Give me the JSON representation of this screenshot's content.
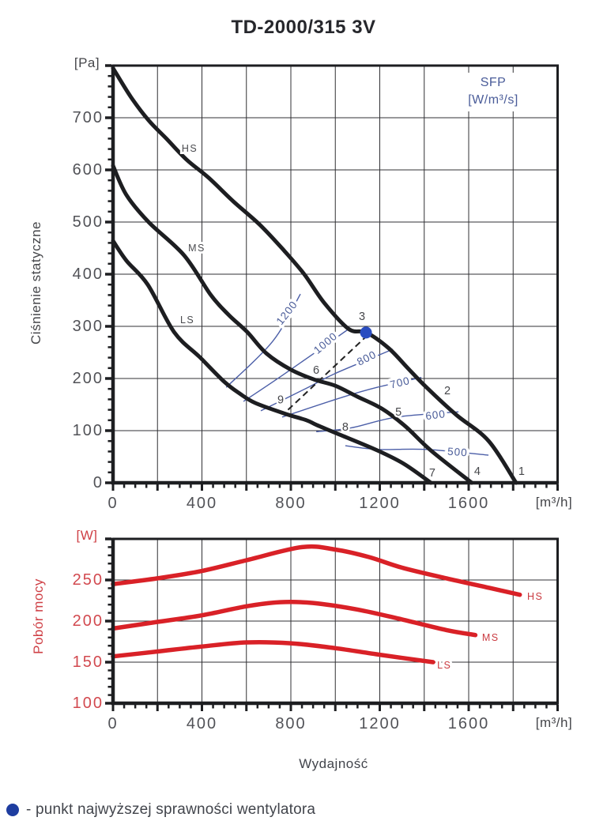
{
  "title": "TD-2000/315 3V",
  "labels": {
    "pa_unit": "[Pa]",
    "w_unit": "[W]",
    "flow_unit_top": "[m³/h]",
    "flow_unit_bottom": "[m³/h]",
    "pressure_axis": "Ciśnienie statyczne",
    "power_axis": "Pobór mocy",
    "flow_axis": "Wydajność",
    "sfp_line1": "SFP",
    "sfp_line2": "[W/m³/s]",
    "footer_text": "- punkt najwyższej sprawności wentylatora",
    "footer_dot": "best-efficiency-point-marker"
  },
  "colors": {
    "curve_black": "#1d1e21",
    "curve_red": "#d92127",
    "grid": "#303034",
    "tick_text": "#515257",
    "tick_text_red": "#d2494f",
    "sfp_blue": "#4c5fa8",
    "sfp_text": "#4a5c99",
    "point_text": "#46474b",
    "curve_label": "#4a4b4f",
    "curve_label_red": "#ca3a40",
    "best_point_blue": "#2a4dc0"
  },
  "chart_data": [
    {
      "type": "line",
      "title": "TD-2000/315 3V",
      "xlabel": "Wydajność",
      "ylabel": "Ciśnienie statyczne",
      "x_unit": "[m³/h]",
      "y_unit": "[Pa]",
      "xlim": [
        0,
        2000
      ],
      "ylim": [
        0,
        800
      ],
      "grid": true,
      "grid_step_x": 200,
      "grid_step_y": 100,
      "minor_tick_x": 50,
      "minor_tick_y": 20,
      "x_ticks_labeled": [
        0,
        400,
        800,
        1200,
        1600
      ],
      "y_ticks_labeled": [
        0,
        100,
        200,
        300,
        400,
        500,
        600,
        700
      ],
      "series": [
        {
          "name": "HS",
          "points": [
            [
              0,
              795
            ],
            [
              80,
              740
            ],
            [
              160,
              695
            ],
            [
              240,
              660
            ],
            [
              330,
              620
            ],
            [
              430,
              585
            ],
            [
              540,
              540
            ],
            [
              660,
              495
            ],
            [
              770,
              445
            ],
            [
              860,
              400
            ],
            [
              950,
              345
            ],
            [
              1060,
              295
            ],
            [
              1140,
              288
            ],
            [
              1240,
              258
            ],
            [
              1330,
              218
            ],
            [
              1410,
              183
            ],
            [
              1545,
              130
            ],
            [
              1690,
              80
            ],
            [
              1813,
              0
            ]
          ],
          "label_pos": [
            309,
            641
          ]
        },
        {
          "name": "MS",
          "points": [
            [
              0,
              608
            ],
            [
              60,
              552
            ],
            [
              160,
              500
            ],
            [
              320,
              436
            ],
            [
              440,
              360
            ],
            [
              520,
              322
            ],
            [
              604,
              289
            ],
            [
              690,
              248
            ],
            [
              800,
              217
            ],
            [
              905,
              198
            ],
            [
              1000,
              186
            ],
            [
              1100,
              165
            ],
            [
              1210,
              142
            ],
            [
              1316,
              108
            ],
            [
              1430,
              62
            ],
            [
              1614,
              0
            ]
          ],
          "label_pos": [
            338,
            450
          ]
        },
        {
          "name": "LS",
          "points": [
            [
              0,
              464
            ],
            [
              60,
              426
            ],
            [
              156,
              380
            ],
            [
              275,
              289
            ],
            [
              390,
              241
            ],
            [
              500,
              194
            ],
            [
              570,
              171
            ],
            [
              640,
              153
            ],
            [
              770,
              133
            ],
            [
              870,
              120
            ],
            [
              915,
              111
            ],
            [
              1005,
              95
            ],
            [
              1190,
              62
            ],
            [
              1310,
              36
            ],
            [
              1430,
              0
            ]
          ],
          "label_pos": [
            302,
            312
          ]
        }
      ],
      "sfp_lines": [
        {
          "value": "1200",
          "points": [
            [
              509,
              183
            ],
            [
              718,
              271
            ],
            [
              843,
              362
            ]
          ],
          "label_pos": [
            782,
            326
          ],
          "label_rot": -52
        },
        {
          "value": "1000",
          "points": [
            [
              587,
              156
            ],
            [
              779,
              211
            ],
            [
              1067,
              297
            ]
          ],
          "label_pos": [
            956,
            268
          ],
          "label_rot": -40
        },
        {
          "value": "800",
          "points": [
            [
              665,
              138
            ],
            [
              878,
              183
            ],
            [
              996,
              209
            ],
            [
              1259,
              256
            ]
          ],
          "label_pos": [
            1141,
            239
          ],
          "label_rot": -27
        },
        {
          "value": "700",
          "points": [
            [
              761,
              126
            ],
            [
              1031,
              164
            ],
            [
              1188,
              183
            ],
            [
              1387,
              202
            ]
          ],
          "label_pos": [
            1291,
            192
          ],
          "label_rot": -14
        },
        {
          "value": "600",
          "points": [
            [
              914,
              98
            ],
            [
              1067,
              105
            ],
            [
              1276,
              126
            ],
            [
              1554,
              136
            ]
          ],
          "label_pos": [
            1451,
            130
          ],
          "label_rot": -7
        },
        {
          "value": "500",
          "points": [
            [
              1045,
              71
            ],
            [
              1191,
              64
            ],
            [
              1412,
              64
            ],
            [
              1689,
              53
            ]
          ],
          "label_pos": [
            1550,
            59
          ],
          "label_rot": 4
        }
      ],
      "sfp_legend": [
        "SFP",
        "[W/m³/s]"
      ],
      "point_labels": [
        {
          "n": "1",
          "pos": [
            1838,
            21
          ]
        },
        {
          "n": "2",
          "pos": [
            1504,
            176
          ]
        },
        {
          "n": "3",
          "pos": [
            1120,
            318
          ]
        },
        {
          "n": "4",
          "pos": [
            1639,
            21
          ]
        },
        {
          "n": "5",
          "pos": [
            1284,
            135
          ]
        },
        {
          "n": "6",
          "pos": [
            914,
            215
          ]
        },
        {
          "n": "7",
          "pos": [
            1436,
            18
          ]
        },
        {
          "n": "8",
          "pos": [
            1045,
            106
          ]
        },
        {
          "n": "9",
          "pos": [
            754,
            158
          ]
        }
      ],
      "best_efficiency_point": [
        1138,
        288
      ],
      "dashed_line": [
        [
          1145,
          283
        ],
        [
          775,
          135
        ]
      ]
    },
    {
      "type": "line",
      "xlabel": "Wydajność",
      "ylabel": "Pobór mocy",
      "x_unit": "[m³/h]",
      "y_unit": "[W]",
      "xlim": [
        0,
        2000
      ],
      "ylim": [
        100,
        300
      ],
      "grid": true,
      "grid_step_x": 200,
      "grid_step_y": 50,
      "minor_tick_x": 50,
      "minor_tick_y": 10,
      "x_ticks_labeled": [
        0,
        400,
        800,
        1200,
        1600
      ],
      "y_ticks_labeled": [
        100,
        150,
        200,
        250
      ],
      "series": [
        {
          "name": "HS",
          "points": [
            [
              0,
              245
            ],
            [
              200,
              252
            ],
            [
              400,
              261
            ],
            [
              600,
              274
            ],
            [
              850,
              290
            ],
            [
              1000,
              287
            ],
            [
              1150,
              278
            ],
            [
              1300,
              265
            ],
            [
              1500,
              252
            ],
            [
              1700,
              240
            ],
            [
              1830,
              232
            ]
          ],
          "label_pos": [
            1863,
            230
          ]
        },
        {
          "name": "MS",
          "points": [
            [
              0,
              191
            ],
            [
              200,
              199
            ],
            [
              400,
              207
            ],
            [
              600,
              218
            ],
            [
              750,
              223
            ],
            [
              900,
              222
            ],
            [
              1100,
              214
            ],
            [
              1300,
              202
            ],
            [
              1500,
              189
            ],
            [
              1630,
              183
            ]
          ],
          "label_pos": [
            1660,
            180
          ]
        },
        {
          "name": "LS",
          "points": [
            [
              0,
              157
            ],
            [
              200,
              163
            ],
            [
              400,
              169
            ],
            [
              600,
              174
            ],
            [
              800,
              173
            ],
            [
              1000,
              167
            ],
            [
              1200,
              159
            ],
            [
              1440,
              150
            ]
          ],
          "label_pos": [
            1458,
            146
          ]
        }
      ]
    }
  ]
}
